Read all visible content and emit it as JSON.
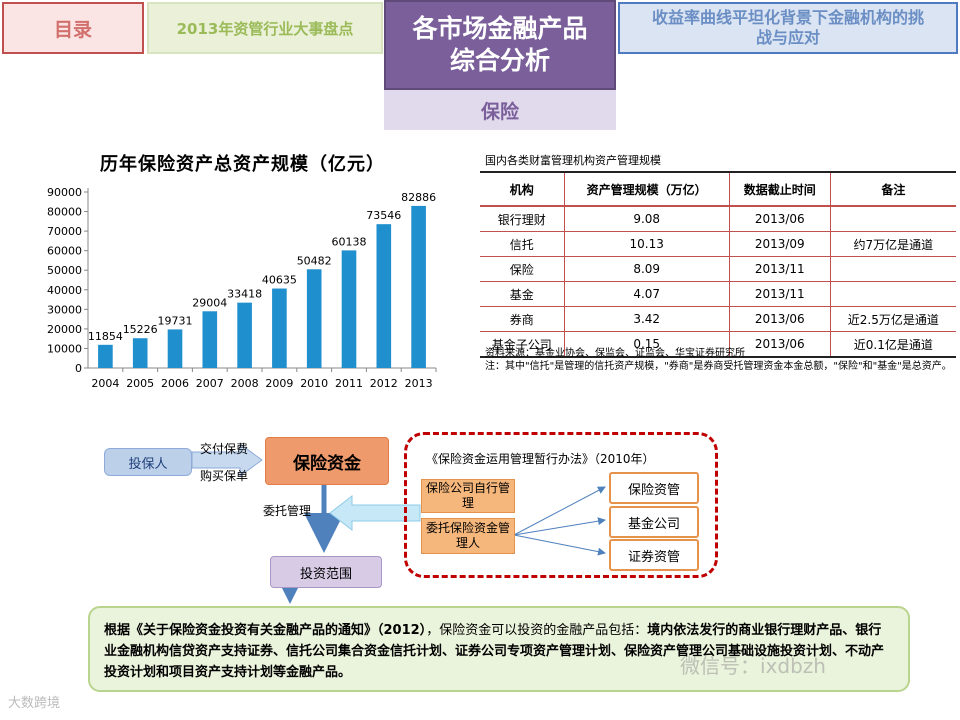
{
  "nav": {
    "toc": "目录",
    "events_2013": "2013年资管行业大事盘点",
    "active_line1": "各市场金融产品",
    "active_line2": "综合分析",
    "yield_line1": "收益率曲线平坦化背景下金融机构的挑",
    "yield_line2": "战与应对",
    "subtab": "保险"
  },
  "chart_title": "历年保险资产总资产规模（亿元）",
  "chart_data": {
    "type": "bar",
    "categories": [
      "2004",
      "2005",
      "2006",
      "2007",
      "2008",
      "2009",
      "2010",
      "2011",
      "2012",
      "2013"
    ],
    "values": [
      11854,
      15226,
      19731,
      29004,
      33418,
      40635,
      50482,
      60138,
      73546,
      82886
    ],
    "ylim": [
      0,
      90000
    ],
    "yticks": [
      0,
      10000,
      20000,
      30000,
      40000,
      50000,
      60000,
      70000,
      80000,
      90000
    ],
    "bar_color": "#1f8fce",
    "grid": false,
    "data_labels": true
  },
  "table": {
    "caption": "国内各类财富管理机构资产管理规模",
    "headers": [
      "机构",
      "资产管理规模（万亿）",
      "数据截止时间",
      "备注"
    ],
    "rows": [
      [
        "银行理财",
        "9.08",
        "2013/06",
        ""
      ],
      [
        "信托",
        "10.13",
        "2013/09",
        "约7万亿是通道"
      ],
      [
        "保险",
        "8.09",
        "2013/11",
        ""
      ],
      [
        "基金",
        "4.07",
        "2013/11",
        ""
      ],
      [
        "券商",
        "3.42",
        "2013/06",
        "近2.5万亿是通道"
      ],
      [
        "基金子公司",
        "0.15",
        "2013/06",
        "近0.1亿是通道"
      ]
    ],
    "source": "资料来源：基金业协会、保监会、证监会、华宝证券研究所",
    "note": "注：其中\"信托\"是管理的信托资产规模，\"券商\"是券商受托管理资金本金总额，\"保险\"和\"基金\"是总资产。"
  },
  "flow": {
    "policyholder": "投保人",
    "pay_premium": "交付保费",
    "buy_policy": "购买保单",
    "insurance_funds": "保险资金",
    "entrusted_mgmt": "委托管理",
    "investment_scope": "投资范围",
    "regulation": "《保险资金运用管理暂行办法》（2010年）",
    "self_managed": "保险公司自行管理",
    "entrusted_manager": "委托保险资金管理人",
    "managers": [
      "保险资管",
      "基金公司",
      "证券资管"
    ]
  },
  "callout": {
    "bold_lead": "根据《关于保险资金投资有关金融产品的通知》（2012）",
    "normal_mid": "，保险资金可以投资的金融产品包括：",
    "bold_rest": "境内依法发行的商业银行理财产品、银行业金融机构信贷资产支持证券、信托公司集合资金信托计划、证券公司专项资产管理计划、保险资产管理公司基础设施投资计划、不动产投资计划和项目资产支持计划等金融产品。"
  },
  "watermark": "微信号：ixdbzh",
  "logo": "大数跨境"
}
